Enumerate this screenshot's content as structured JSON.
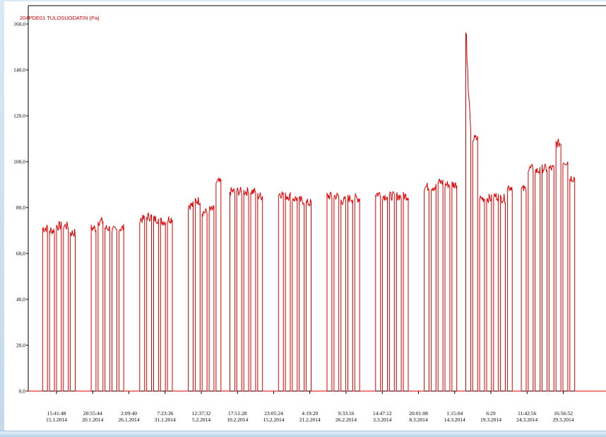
{
  "chart_data": {
    "type": "line",
    "title": "204PDE01 TULOSUODATIN (Pa)",
    "xlabel": "",
    "ylabel": "",
    "ylim": [
      0,
      160
    ],
    "y_ticks": [
      "0,0",
      "20,0",
      "40,0",
      "60,0",
      "80,0",
      "100,0",
      "120,0",
      "140,0",
      "160,0"
    ],
    "y_tick_values": [
      0,
      20,
      40,
      60,
      80,
      100,
      120,
      140,
      160
    ],
    "x_range": [
      "13.1.2014",
      "31.3.2014"
    ],
    "x_ticks": [
      {
        "time": "15:41:48",
        "date": "15.1.2014"
      },
      {
        "time": "20:55:44",
        "date": "20.1.2014"
      },
      {
        "time": "2:09:40",
        "date": "26.1.2014"
      },
      {
        "time": "7:23:36",
        "date": "31.1.2014"
      },
      {
        "time": "12:37:32",
        "date": "5.2.2014"
      },
      {
        "time": "17:51:28",
        "date": "10.2.2014"
      },
      {
        "time": "23:05:24",
        "date": "15.2.2014"
      },
      {
        "time": "4:19:20",
        "date": "21.2.2014"
      },
      {
        "time": "9:33:16",
        "date": "26.2.2014"
      },
      {
        "time": "14:47:12",
        "date": "3.3.2014"
      },
      {
        "time": "20:01:08",
        "date": "8.3.2014"
      },
      {
        "time": "1:15:04",
        "date": "14.3.2014"
      },
      {
        "time": "6:29",
        "date": "19.3.2014"
      },
      {
        "time": "11:42:56",
        "date": "24.3.2014"
      },
      {
        "time": "16:56:52",
        "date": "29.3.2014"
      }
    ],
    "grid": false,
    "legend": "none",
    "series": [
      {
        "color": "#e00000",
        "note_values": "daily on/off cycle: ~0 when off, plateau value when running",
        "values": [
          {
            "date": "14.1.2014",
            "level": 71
          },
          {
            "date": "15.1.2014",
            "level": 70
          },
          {
            "date": "16.1.2014",
            "level": 72
          },
          {
            "date": "17.1.2014",
            "level": 72
          },
          {
            "date": "18.1.2014",
            "level": 69
          },
          {
            "date": "21.1.2014",
            "level": 71
          },
          {
            "date": "22.1.2014",
            "level": 74
          },
          {
            "date": "23.1.2014",
            "level": 71
          },
          {
            "date": "24.1.2014",
            "level": 70
          },
          {
            "date": "25.1.2014",
            "level": 71
          },
          {
            "date": "28.1.2014",
            "level": 75
          },
          {
            "date": "29.1.2014",
            "level": 76
          },
          {
            "date": "30.1.2014",
            "level": 75
          },
          {
            "date": "31.1.2014",
            "level": 74
          },
          {
            "date": "1.2.2014",
            "level": 75
          },
          {
            "date": "4.2.2014",
            "level": 81
          },
          {
            "date": "5.2.2014",
            "level": 83
          },
          {
            "date": "6.2.2014",
            "level": 78
          },
          {
            "date": "7.2.2014",
            "level": 79
          },
          {
            "date": "8.2.2014",
            "level": 91
          },
          {
            "date": "10.2.2014",
            "level": 87
          },
          {
            "date": "11.2.2014",
            "level": 87
          },
          {
            "date": "12.2.2014",
            "level": 87
          },
          {
            "date": "13.2.2014",
            "level": 87
          },
          {
            "date": "14.2.2014",
            "level": 85
          },
          {
            "date": "17.2.2014",
            "level": 86
          },
          {
            "date": "18.2.2014",
            "level": 85
          },
          {
            "date": "19.2.2014",
            "level": 84
          },
          {
            "date": "20.2.2014",
            "level": 83
          },
          {
            "date": "21.2.2014",
            "level": 82
          },
          {
            "date": "24.2.2014",
            "level": 85
          },
          {
            "date": "25.2.2014",
            "level": 85
          },
          {
            "date": "26.2.2014",
            "level": 83
          },
          {
            "date": "27.2.2014",
            "level": 84
          },
          {
            "date": "28.2.2014",
            "level": 84
          },
          {
            "date": "3.3.2014",
            "level": 86
          },
          {
            "date": "4.3.2014",
            "level": 85
          },
          {
            "date": "5.3.2014",
            "level": 85
          },
          {
            "date": "6.3.2014",
            "level": 85
          },
          {
            "date": "7.3.2014",
            "level": 85
          },
          {
            "date": "10.3.2014",
            "level": 89
          },
          {
            "date": "11.3.2014",
            "level": 89
          },
          {
            "date": "12.3.2014",
            "level": 91
          },
          {
            "date": "13.3.2014",
            "level": 90
          },
          {
            "date": "14.3.2014",
            "level": 90
          },
          {
            "date": "16.3.2014",
            "level": 160
          },
          {
            "date": "17.3.2014",
            "level": 110
          },
          {
            "date": "18.3.2014",
            "level": 84
          },
          {
            "date": "19.3.2014",
            "level": 84
          },
          {
            "date": "20.3.2014",
            "level": 85
          },
          {
            "date": "21.3.2014",
            "level": 84
          },
          {
            "date": "22.3.2014",
            "level": 89
          },
          {
            "date": "24.3.2014",
            "level": 88
          },
          {
            "date": "25.3.2014",
            "level": 97
          },
          {
            "date": "26.3.2014",
            "level": 96
          },
          {
            "date": "27.3.2014",
            "level": 97
          },
          {
            "date": "28.3.2014",
            "level": 97
          },
          {
            "date": "29.3.2014",
            "level": 108
          },
          {
            "date": "30.3.2014",
            "level": 100
          },
          {
            "date": "31.3.2014",
            "level": 93
          }
        ]
      }
    ]
  }
}
